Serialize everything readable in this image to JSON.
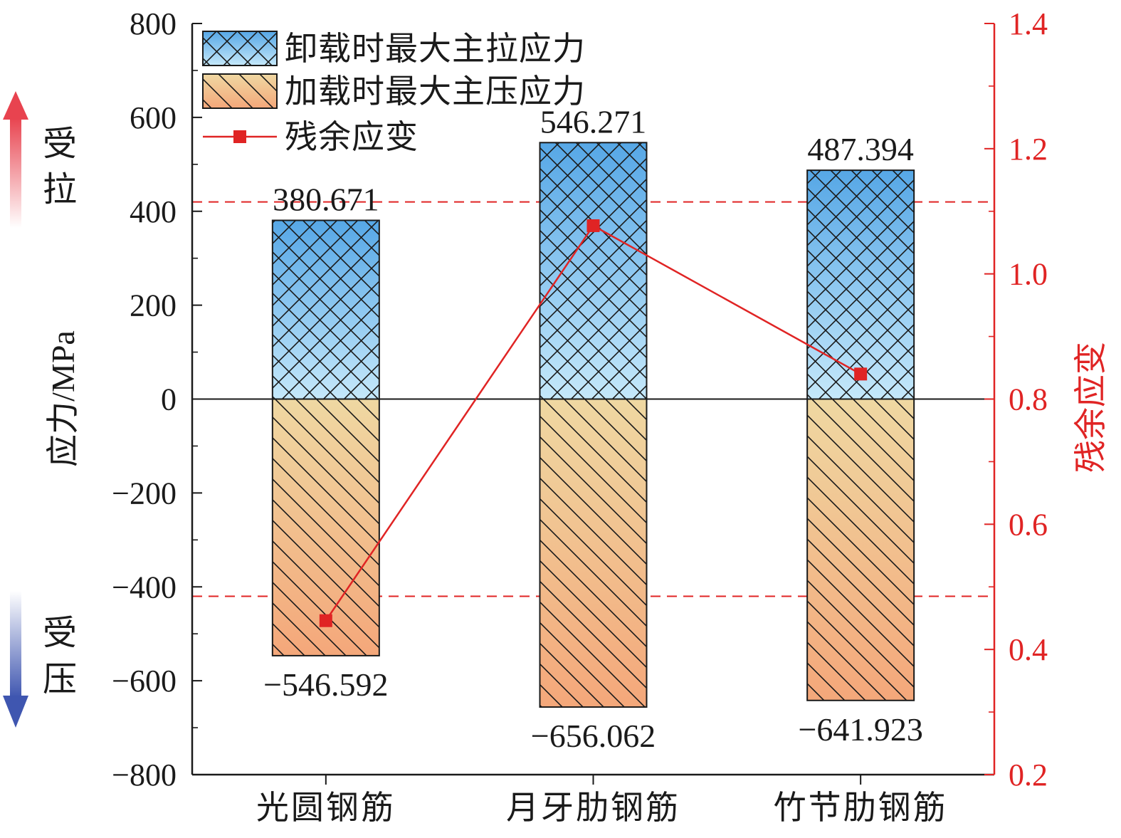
{
  "chart_data": {
    "type": "bar",
    "categories": [
      "光圆钢筋",
      "月牙肋钢筋",
      "竹节肋钢筋"
    ],
    "series": [
      {
        "name": "卸载时最大主拉应力",
        "axis": "left",
        "kind": "bar",
        "values": [
          380.671,
          546.271,
          487.394
        ],
        "value_labels": [
          "380.671",
          "546.271",
          "487.394"
        ],
        "color_top": "#56a7e6",
        "color_bottom": "#c5e8fa"
      },
      {
        "name": "加载时最大主压应力",
        "axis": "left",
        "kind": "bar",
        "values": [
          -546.592,
          -656.062,
          -641.923
        ],
        "value_labels": [
          "−546.592",
          "−656.062",
          "−641.923"
        ],
        "color_top": "#efd8a2",
        "color_bottom": "#f4a77a"
      },
      {
        "name": "残余应变",
        "axis": "right",
        "kind": "line",
        "values": [
          0.446,
          1.077,
          0.84
        ],
        "color": "#e02424"
      }
    ],
    "ylabel": "应力/MPa",
    "y2label": "残余应变",
    "ylim": [
      -800,
      800
    ],
    "y2lim": [
      0.2,
      1.4
    ],
    "yticks": [
      -800,
      -600,
      -400,
      -200,
      0,
      200,
      400,
      600,
      800
    ],
    "yticklabels": [
      "−800",
      "−600",
      "−400",
      "−200",
      "0",
      "200",
      "400",
      "600",
      "800"
    ],
    "y2ticks": [
      0.2,
      0.4,
      0.6,
      0.8,
      1.0,
      1.2,
      1.4
    ],
    "y2ticklabels": [
      "0.2",
      "0.4",
      "0.6",
      "0.8",
      "1.0",
      "1.2",
      "1.4"
    ],
    "reference_lines": [
      {
        "axis": "left",
        "value": 420,
        "style": "dashed",
        "color": "#e02424"
      },
      {
        "axis": "left",
        "value": -420,
        "style": "dashed",
        "color": "#e02424"
      }
    ],
    "side_annotations": [
      {
        "text": "受拉",
        "arrow": "up",
        "color": "#e8434f"
      },
      {
        "text": "受压",
        "arrow": "down",
        "color": "#3f56b0"
      }
    ],
    "legend": "top-left",
    "grid": false
  }
}
